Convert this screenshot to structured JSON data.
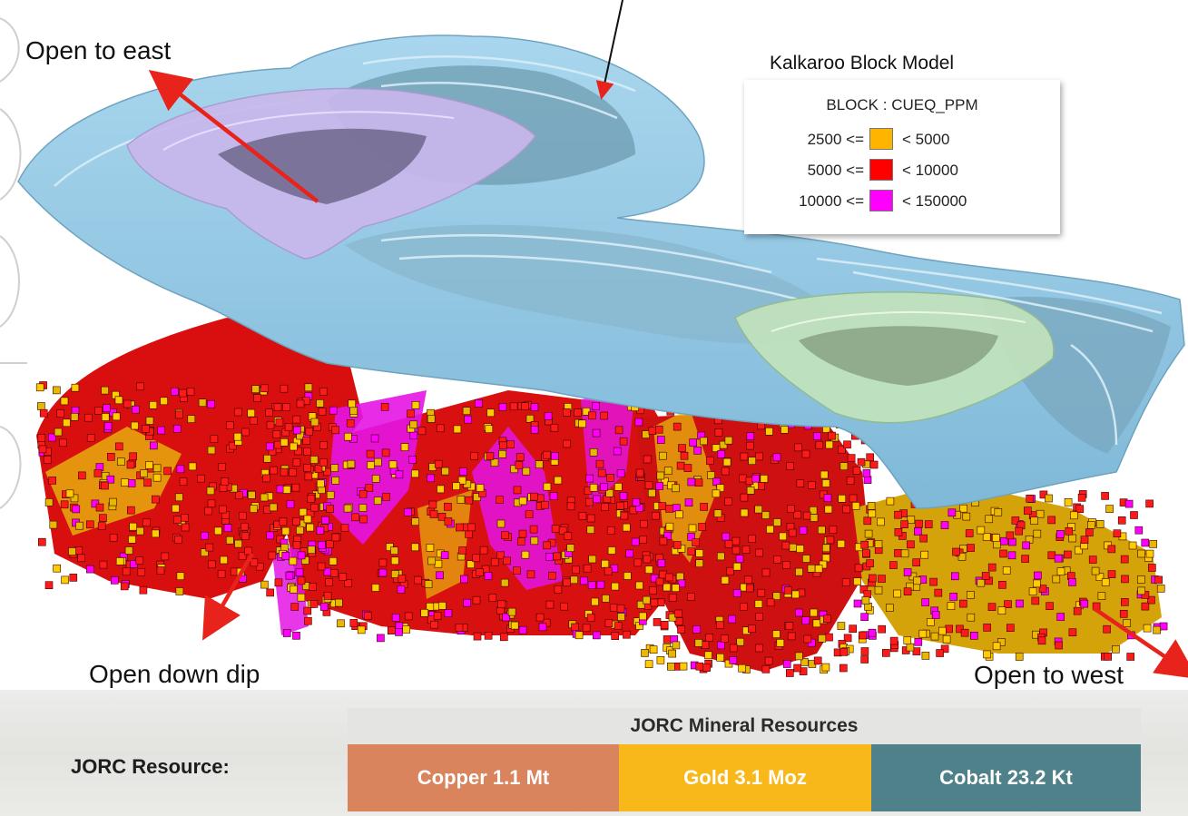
{
  "callouts": {
    "east": "Open to east",
    "down_dip": "Open down dip",
    "west": "Open to west"
  },
  "legend": {
    "title": "Kalkaroo Block Model",
    "heading": "BLOCK : CUEQ_PPM",
    "rows": [
      {
        "low": "2500 <=",
        "high": "< 5000",
        "color": "#ffb400"
      },
      {
        "low": "5000 <=",
        "high": "< 10000",
        "color": "#ff0000"
      },
      {
        "low": "10000 <=",
        "high": "< 150000",
        "color": "#ff00ff"
      }
    ]
  },
  "resources": {
    "label": "JORC Resource:",
    "header": "JORC Mineral Resources",
    "items": [
      {
        "text": "Copper 1.1 Mt",
        "color": "#d9845d"
      },
      {
        "text": "Gold 3.1 Moz",
        "color": "#f8b81a"
      },
      {
        "text": "Cobalt 23.2 Kt",
        "color": "#4e8189"
      }
    ]
  },
  "colors": {
    "pit_main": "#8ec6e2",
    "pit_east_stage": "#c7b6ea",
    "pit_west_stage": "#bde0b5",
    "arrow": "#e8231b",
    "cut_off_heading": "#e07a3c"
  }
}
